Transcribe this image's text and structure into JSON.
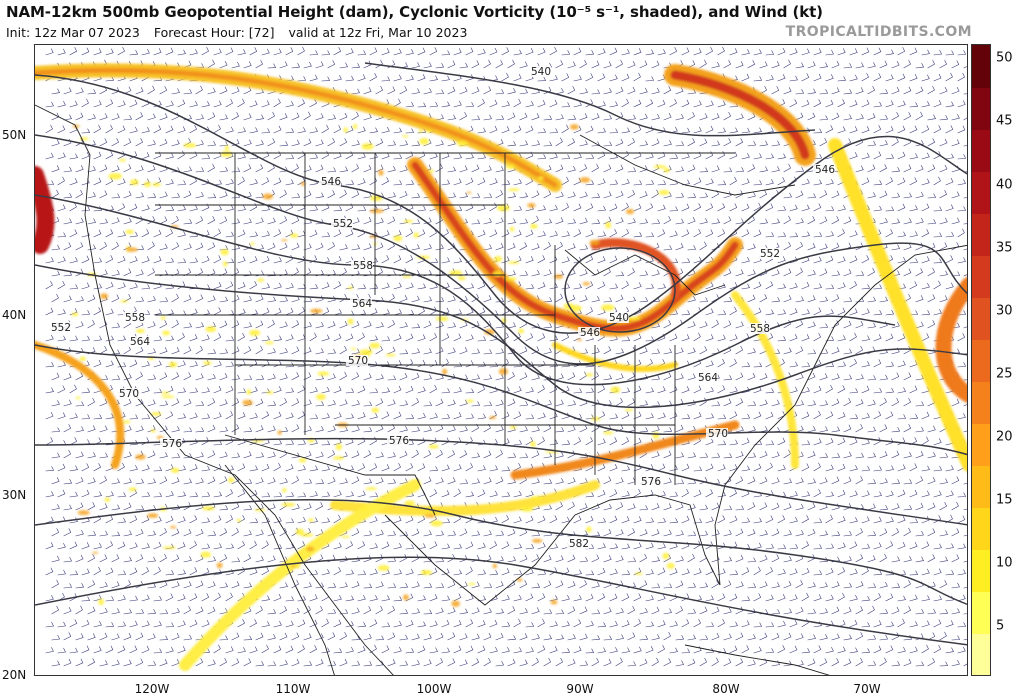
{
  "header": {
    "title": "NAM-12km 500mb Geopotential Height (dam), Cyclonic Vorticity (10⁻⁵ s⁻¹, shaded), and Wind (kt)",
    "init": "Init: 12z Mar 07 2023",
    "forecast_hour": "Forecast Hour: [72]",
    "valid": "valid at 12z Fri, Mar 10 2023",
    "brand": "TROPICALTIDBITS.COM"
  },
  "axes": {
    "lat_labels": [
      "50N",
      "40N",
      "30N",
      "20N"
    ],
    "lon_labels": [
      "120W",
      "110W",
      "100W",
      "90W",
      "80W",
      "70W"
    ]
  },
  "contours": {
    "color": "#3a3a44",
    "labels": [
      "540",
      "546",
      "546",
      "552",
      "552",
      "552",
      "558",
      "558",
      "558",
      "564",
      "564",
      "564",
      "570",
      "570",
      "570",
      "576",
      "576",
      "576",
      "582",
      "540",
      "546"
    ]
  },
  "colorbar": {
    "ticks": [
      "50",
      "45",
      "40",
      "35",
      "30",
      "25",
      "20",
      "15",
      "10",
      "5"
    ],
    "colors": [
      "#ffff99",
      "#ffff55",
      "#ffee22",
      "#ffd61a",
      "#ffbb18",
      "#ff9f1a",
      "#f5811c",
      "#eb6a1e",
      "#e05220",
      "#d33a1e",
      "#c4251b",
      "#b01418",
      "#9a0a14",
      "#800510",
      "#64020a"
    ]
  }
}
